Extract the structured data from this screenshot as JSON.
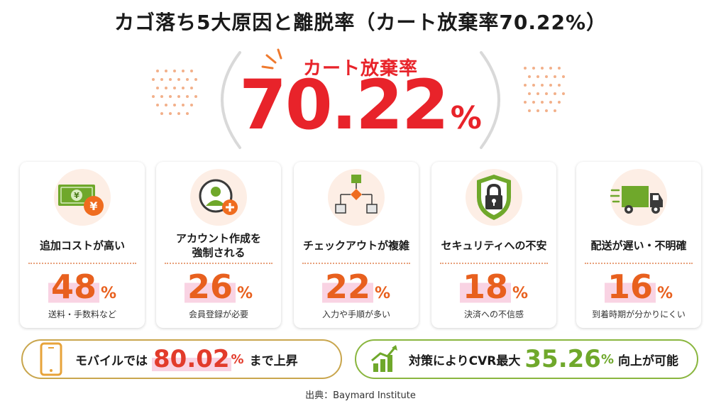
{
  "title": "カゴ落ち5大原因と離脱率（カート放棄率70.22%）",
  "hero": {
    "label": "カート放棄率",
    "value": "70.22",
    "percent_sign": "%"
  },
  "colors": {
    "accent_red": "#e8232a",
    "card_orange": "#e8601e",
    "highlight_pink": "#f9d3e3",
    "pill_gold": "#c9a64e",
    "pill_green": "#8ab63f",
    "green_value": "#6fa82b"
  },
  "cards": [
    {
      "icon": "money-yen-icon",
      "title_lines": [
        "追加コストが高い"
      ],
      "value": "48",
      "percent_sign": "%",
      "sub": "送料・手数料など"
    },
    {
      "icon": "user-add-icon",
      "title_lines": [
        "アカウント作成を",
        "強制される"
      ],
      "value": "26",
      "percent_sign": "%",
      "sub": "会員登録が必要"
    },
    {
      "icon": "flowchart-icon",
      "title_lines": [
        "チェックアウトが複雑"
      ],
      "value": "22",
      "percent_sign": "%",
      "sub": "入力や手順が多い"
    },
    {
      "icon": "shield-lock-icon",
      "title_lines": [
        "セキュリティへの不安"
      ],
      "value": "18",
      "percent_sign": "%",
      "sub": "決済への不信感"
    },
    {
      "icon": "delivery-truck-icon",
      "title_lines": [
        "配送が遅い・不明確"
      ],
      "value": "16",
      "percent_sign": "%",
      "sub": "到着時期が分かりにくい"
    }
  ],
  "mobile": {
    "icon": "smartphone-icon",
    "pre": "モバイルでは",
    "value": "80.02",
    "percent_sign": "%",
    "post": "まで上昇"
  },
  "cvr": {
    "icon": "growth-chart-icon",
    "pre": "対策によりCVR最大",
    "value": "35.26",
    "percent_sign": "%",
    "post": "向上が可能"
  },
  "source": "出典：Baymard Institute"
}
